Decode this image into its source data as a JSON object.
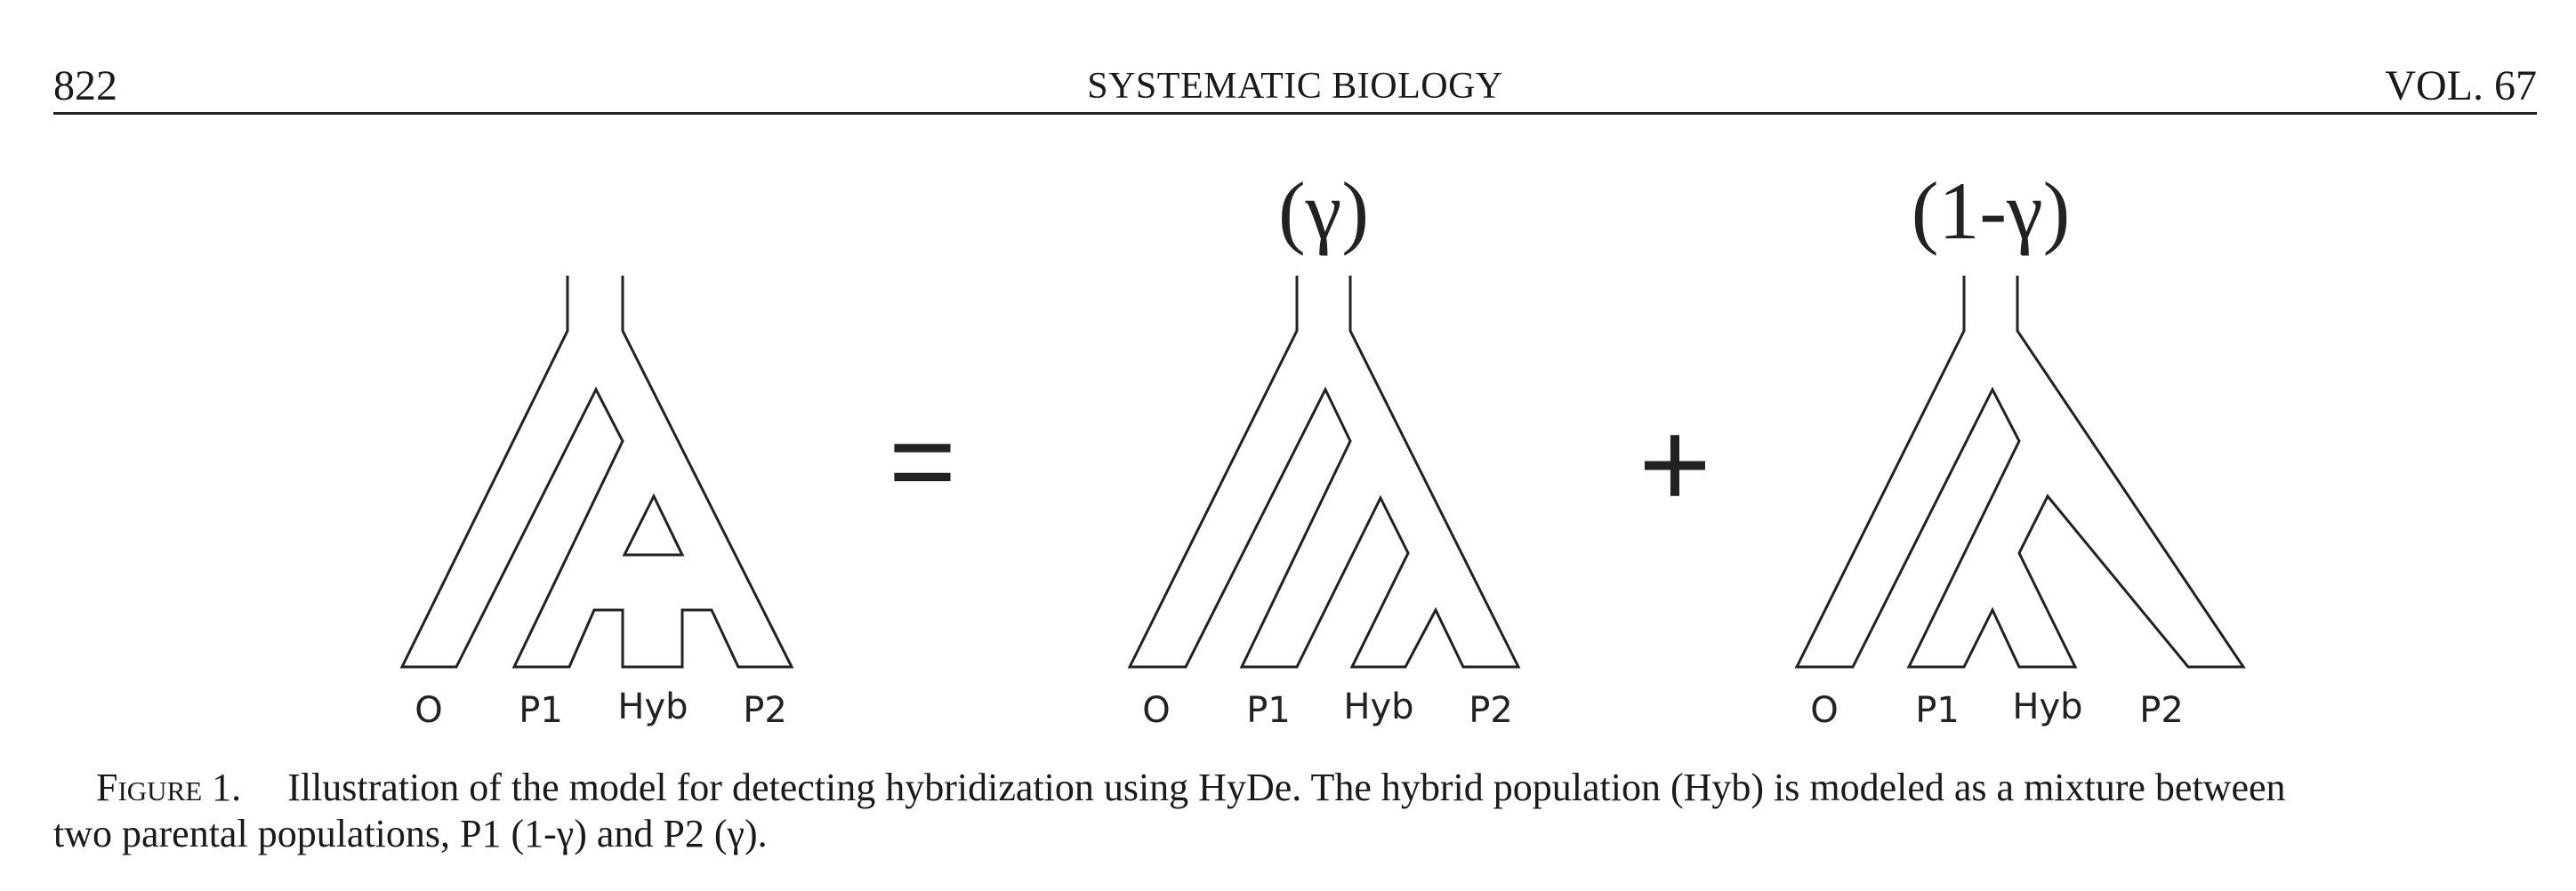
{
  "header": {
    "page_number": "822",
    "journal": "SYSTEMATIC BIOLOGY",
    "volume": "VOL. 67"
  },
  "figure": {
    "equals_sign": "=",
    "plus_sign": "+",
    "weights": [
      "(γ)",
      "(1-γ)"
    ],
    "tips": [
      "O",
      "P1",
      "Hyb",
      "P2"
    ]
  },
  "caption": {
    "label": "Figure 1.",
    "line1": "Illustration of the model for detecting hybridization using HyDe. The hybrid population (Hyb) is modeled as a mixture between",
    "line2": "two parental populations, P1 (1-γ) and P2 (γ)."
  }
}
